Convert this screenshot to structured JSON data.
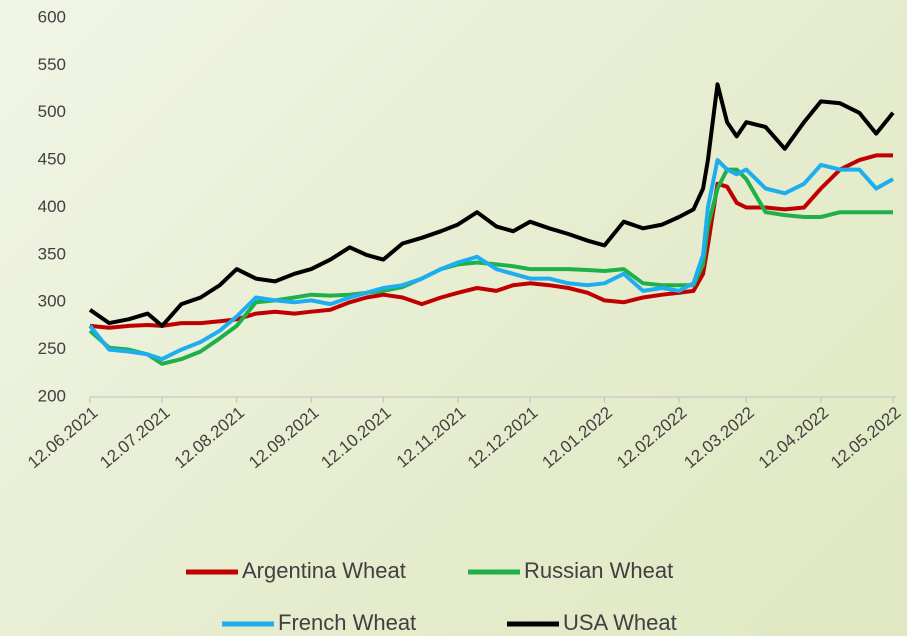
{
  "chart_data": {
    "type": "line",
    "x": [
      "2021-06-12",
      "2021-06-20",
      "2021-06-28",
      "2021-07-06",
      "2021-07-12",
      "2021-07-20",
      "2021-07-28",
      "2021-08-05",
      "2021-08-12",
      "2021-08-20",
      "2021-08-28",
      "2021-09-05",
      "2021-09-12",
      "2021-09-20",
      "2021-09-28",
      "2021-10-05",
      "2021-10-12",
      "2021-10-20",
      "2021-10-28",
      "2021-11-05",
      "2021-11-12",
      "2021-11-20",
      "2021-11-28",
      "2021-12-05",
      "2021-12-12",
      "2021-12-20",
      "2021-12-28",
      "2022-01-05",
      "2022-01-12",
      "2022-01-20",
      "2022-01-28",
      "2022-02-05",
      "2022-02-12",
      "2022-02-18",
      "2022-02-22",
      "2022-02-24",
      "2022-02-28",
      "2022-03-04",
      "2022-03-08",
      "2022-03-12",
      "2022-03-20",
      "2022-03-28",
      "2022-04-05",
      "2022-04-12",
      "2022-04-20",
      "2022-04-28",
      "2022-05-05",
      "2022-05-12"
    ],
    "series": [
      {
        "name": "Argentina Wheat",
        "color": "#c00000",
        "values": [
          275,
          273,
          275,
          276,
          275,
          278,
          278,
          280,
          282,
          288,
          290,
          288,
          290,
          292,
          300,
          305,
          308,
          305,
          298,
          305,
          310,
          315,
          312,
          318,
          320,
          318,
          315,
          310,
          302,
          300,
          305,
          308,
          310,
          312,
          330,
          360,
          425,
          422,
          405,
          400,
          400,
          398,
          400,
          420,
          440,
          450,
          455,
          455
        ]
      },
      {
        "name": "Russian Wheat",
        "color": "#1fb04a",
        "values": [
          270,
          252,
          250,
          245,
          235,
          240,
          248,
          262,
          275,
          300,
          302,
          305,
          308,
          307,
          308,
          310,
          312,
          316,
          325,
          335,
          340,
          342,
          340,
          338,
          335,
          335,
          335,
          334,
          333,
          335,
          320,
          318,
          318,
          318,
          340,
          380,
          420,
          440,
          440,
          430,
          395,
          392,
          390,
          390,
          395,
          395,
          395,
          395
        ]
      },
      {
        "name": "French Wheat",
        "color": "#1eaef0",
        "values": [
          275,
          250,
          248,
          245,
          240,
          250,
          258,
          270,
          285,
          305,
          302,
          300,
          302,
          298,
          305,
          310,
          315,
          318,
          325,
          335,
          342,
          348,
          335,
          330,
          325,
          325,
          320,
          318,
          320,
          330,
          312,
          315,
          312,
          320,
          350,
          400,
          450,
          440,
          435,
          440,
          420,
          415,
          425,
          445,
          440,
          440,
          420,
          430
        ]
      },
      {
        "name": "USA Wheat",
        "color": "#000000",
        "values": [
          292,
          278,
          282,
          288,
          275,
          298,
          305,
          318,
          335,
          325,
          322,
          330,
          335,
          345,
          358,
          350,
          345,
          362,
          368,
          375,
          382,
          395,
          380,
          375,
          385,
          378,
          372,
          365,
          360,
          385,
          378,
          382,
          390,
          398,
          420,
          450,
          530,
          490,
          475,
          490,
          485,
          462,
          490,
          512,
          510,
          500,
          478,
          500
        ]
      }
    ],
    "xlim": [
      "2021-06-12",
      "2022-05-12"
    ],
    "xticks": [
      {
        "value": "2021-06-12",
        "label": "12.06.2021"
      },
      {
        "value": "2021-07-12",
        "label": "12.07.2021"
      },
      {
        "value": "2021-08-12",
        "label": "12.08.2021"
      },
      {
        "value": "2021-09-12",
        "label": "12.09.2021"
      },
      {
        "value": "2021-10-12",
        "label": "12.10.2021"
      },
      {
        "value": "2021-11-12",
        "label": "12.11.2021"
      },
      {
        "value": "2021-12-12",
        "label": "12.12.2021"
      },
      {
        "value": "2022-01-12",
        "label": "12.01.2022"
      },
      {
        "value": "2022-02-12",
        "label": "12.02.2022"
      },
      {
        "value": "2022-03-12",
        "label": "12.03.2022"
      },
      {
        "value": "2022-04-12",
        "label": "12.04.2022"
      },
      {
        "value": "2022-05-12",
        "label": "12.05.2022"
      }
    ],
    "ylim": [
      200,
      600
    ],
    "yticks": [
      200,
      250,
      300,
      350,
      400,
      450,
      500,
      550,
      600
    ],
    "grid": false,
    "legend": "bottom"
  }
}
